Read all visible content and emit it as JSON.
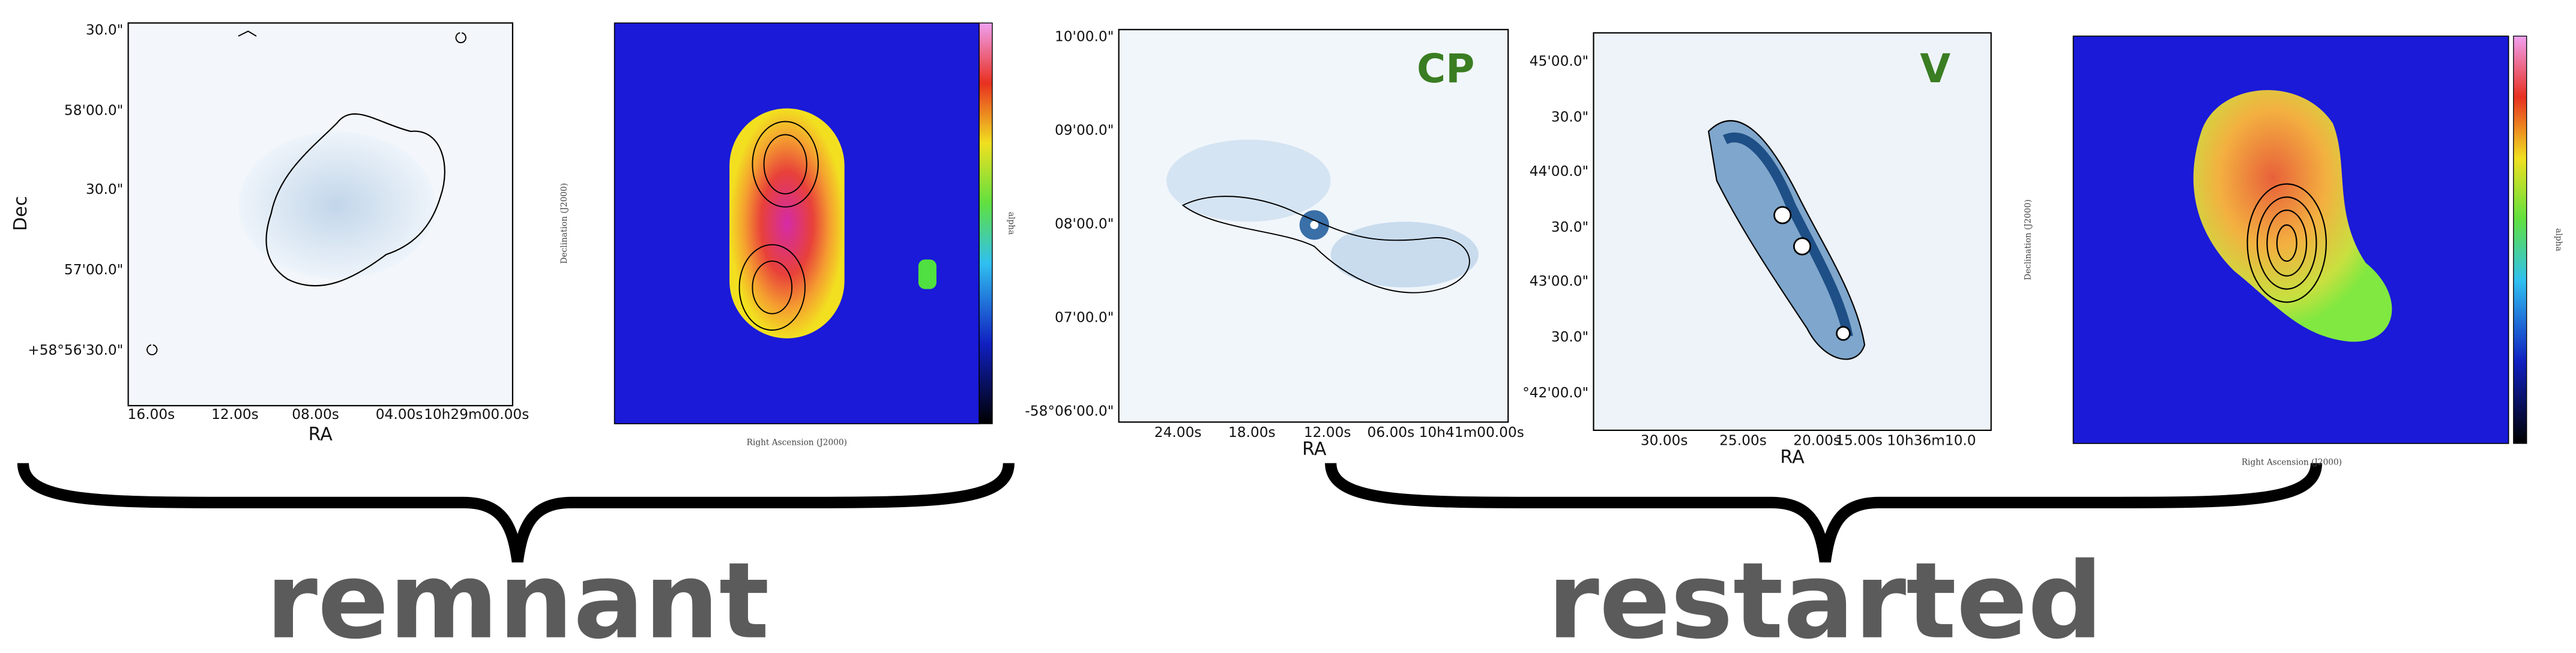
{
  "panels": [
    {
      "y_ticks": [
        "30.0\"",
        "58'00.0\"",
        "30.0\"",
        "57'00.0\"",
        "+58°56'30.0\""
      ],
      "x_ticks": [
        "16.00s",
        "12.00s",
        "08.00s",
        "04.00s",
        "10h29m00.00s"
      ],
      "xlabel": "RA",
      "ylabel": "Dec"
    },
    {
      "xlabel": "Right Ascension (J2000)",
      "ylabel": "Declination (J2000)",
      "colorbar_label": "alpha"
    },
    {
      "tag": "CP",
      "y_ticks": [
        "10'00.0\"",
        "09'00.0\"",
        "08'00.0\"",
        "07'00.0\"",
        "-58°06'00.0\""
      ],
      "x_ticks": [
        "24.00s",
        "18.00s",
        "12.00s",
        "06.00s 10h41m00.00s"
      ],
      "xlabel": "RA"
    },
    {
      "tag": "V",
      "y_ticks": [
        "45'00.0\"",
        "30.0\"",
        "44'00.0\"",
        "30.0\"",
        "43'00.0\"",
        "30.0\"",
        "°42'00.0\""
      ],
      "x_ticks": [
        "30.00s",
        "25.00s",
        "20.00s",
        "15.00s 10h36m10.0"
      ],
      "xlabel": "RA"
    },
    {
      "xlabel": "Right Ascension (J2000)",
      "ylabel": "Declination (J2000)",
      "colorbar_label": "alpha"
    }
  ],
  "groups": [
    "remnant",
    "restarted"
  ]
}
